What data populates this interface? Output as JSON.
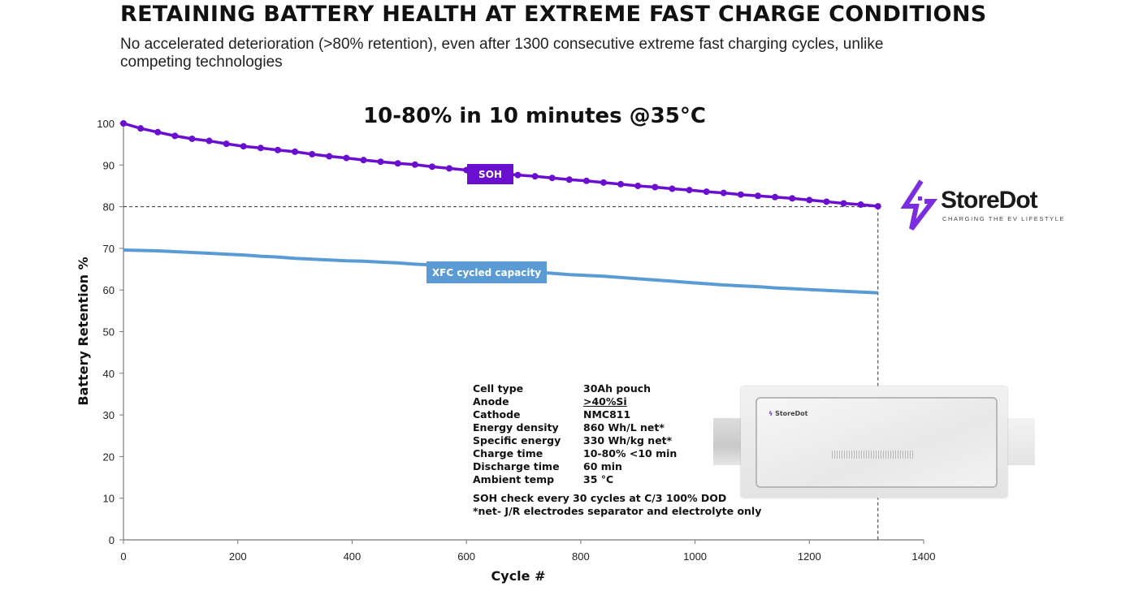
{
  "title": "RETAINING BATTERY HEALTH AT EXTREME FAST CHARGE CONDITIONS",
  "subtitle": "No accelerated deterioration (>80% retention), even after 1300 consecutive extreme fast charging cycles, unlike competing technologies",
  "colors": {
    "soh": "#6a0fcf",
    "xfc": "#5b9bd5",
    "brand": "#7a2ee0"
  },
  "chart_data": {
    "type": "line",
    "title": "10-80% in 10 minutes @35°C",
    "xlabel": "Cycle #",
    "ylabel": "Battery Retention %",
    "xlim": [
      0,
      1400
    ],
    "ylim": [
      0,
      100
    ],
    "xticks": [
      0,
      200,
      400,
      600,
      800,
      1000,
      1200,
      1400
    ],
    "yticks": [
      0,
      10,
      20,
      30,
      40,
      50,
      60,
      70,
      80,
      90,
      100
    ],
    "grid": false,
    "reference_lines": {
      "y": 80,
      "x": 1320,
      "style": "dashed"
    },
    "x": [
      0,
      30,
      60,
      90,
      120,
      150,
      180,
      210,
      240,
      270,
      300,
      330,
      360,
      390,
      420,
      450,
      480,
      510,
      540,
      570,
      600,
      630,
      660,
      690,
      720,
      750,
      780,
      810,
      840,
      870,
      900,
      930,
      960,
      990,
      1020,
      1050,
      1080,
      1110,
      1140,
      1170,
      1200,
      1230,
      1260,
      1290,
      1320
    ],
    "series": [
      {
        "name": "SOH",
        "markers": true,
        "values": [
          100,
          98.8,
          97.9,
          97.0,
          96.3,
          95.8,
          95.1,
          94.5,
          94.1,
          93.6,
          93.2,
          92.6,
          92.1,
          91.7,
          91.2,
          90.8,
          90.4,
          90.1,
          89.6,
          89.2,
          88.8,
          88.4,
          88.0,
          87.6,
          87.3,
          86.9,
          86.5,
          86.2,
          85.8,
          85.4,
          85.0,
          84.7,
          84.3,
          84.0,
          83.6,
          83.3,
          82.9,
          82.6,
          82.3,
          82.0,
          81.6,
          81.2,
          80.8,
          80.5,
          80.1
        ]
      },
      {
        "name": "XFC cycled capacity",
        "markers": false,
        "values": [
          69.6,
          69.5,
          69.4,
          69.2,
          69.0,
          68.8,
          68.6,
          68.4,
          68.1,
          67.9,
          67.6,
          67.4,
          67.2,
          67.0,
          66.9,
          66.7,
          66.5,
          66.2,
          66.0,
          65.8,
          65.5,
          65.2,
          64.9,
          64.6,
          64.3,
          64.0,
          63.7,
          63.5,
          63.3,
          63.0,
          62.7,
          62.4,
          62.1,
          61.8,
          61.5,
          61.2,
          61.0,
          60.8,
          60.5,
          60.3,
          60.1,
          59.9,
          59.7,
          59.5,
          59.3
        ]
      }
    ]
  },
  "specs": [
    {
      "label": "Cell type",
      "value": "30Ah pouch"
    },
    {
      "label": "Anode",
      "value": ">40%Si"
    },
    {
      "label": "Cathode",
      "value": "NMC811"
    },
    {
      "label": "Energy density",
      "value": "860 Wh/L net*"
    },
    {
      "label": "Specific energy",
      "value": "330 Wh/kg net*"
    },
    {
      "label": "Charge time",
      "value": "10-80% <10 min"
    },
    {
      "label": "Discharge time",
      "value": "60 min"
    },
    {
      "label": "Ambient temp",
      "value": "35 °C"
    }
  ],
  "notes": [
    "SOH  check every 30 cycles at C/3 100% DOD",
    "*net- J/R electrodes separator and electrolyte only"
  ],
  "logo": {
    "name": "StoreDot",
    "tagline": "CHARGING THE EV LIFESTYLE",
    "icon": "lightning-bolt-icon"
  },
  "battery_image": {
    "logo_text": "StoreDot"
  }
}
